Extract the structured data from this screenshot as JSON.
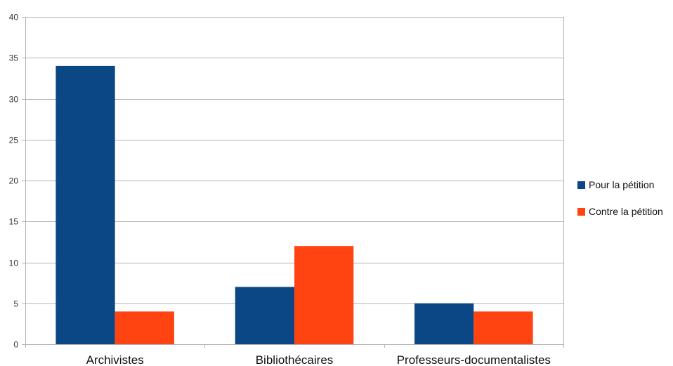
{
  "chart_data": {
    "type": "bar",
    "categories": [
      "Archivistes",
      "Bibliothécaires",
      "Professeurs-documentalistes"
    ],
    "series": [
      {
        "name": "Pour la pétition",
        "values": [
          34,
          7,
          5
        ],
        "color": "#0a4784"
      },
      {
        "name": "Contre la pétition",
        "values": [
          4,
          12,
          4
        ],
        "color": "#ff4412"
      }
    ],
    "ylim": [
      0,
      40
    ],
    "yticks": [
      0,
      5,
      10,
      15,
      20,
      25,
      30,
      35,
      40
    ],
    "grid": true,
    "legend_position": "right"
  }
}
